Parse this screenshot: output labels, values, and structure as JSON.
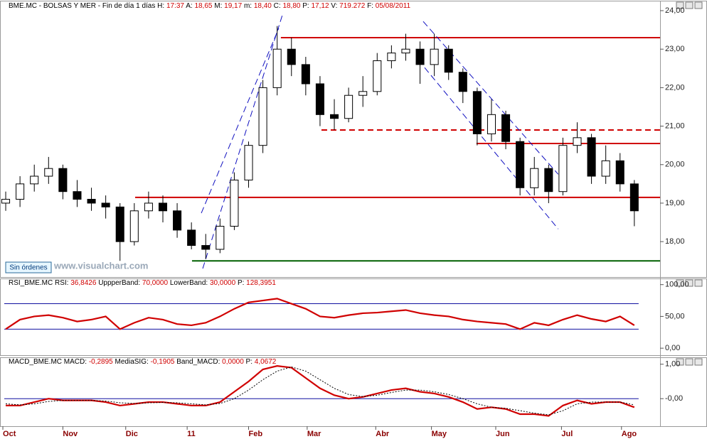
{
  "chart_data": [
    {
      "type": "candlestick",
      "title": "BME.MC - BOLSAS Y MER - Fin de día 1 días",
      "header": [
        [
          "H:",
          "17:37"
        ],
        [
          "A:",
          "18,65"
        ],
        [
          "M:",
          "19,17"
        ],
        [
          "m:",
          "18,40"
        ],
        [
          "C:",
          "18,80"
        ],
        [
          "P:",
          "17,12"
        ],
        [
          "V:",
          "719.272"
        ],
        [
          "F:",
          "05/08/2011"
        ]
      ],
      "badge": "Sin órdenes",
      "watermark": "www.visualchart.com",
      "xlim": [
        -0.4,
        45.8
      ],
      "ylim": [
        17.08,
        24.24
      ],
      "yticks": [
        {
          "value": 18,
          "label": "18,00"
        },
        {
          "value": 19,
          "label": "19,00"
        },
        {
          "value": 20,
          "label": "20,00"
        },
        {
          "value": 21,
          "label": "21,00"
        },
        {
          "value": 22,
          "label": "22,00"
        },
        {
          "value": 23,
          "label": "23,00"
        },
        {
          "value": 24,
          "label": "24,00"
        }
      ],
      "open": [
        19.0,
        19.1,
        19.5,
        19.7,
        19.9,
        19.3,
        19.1,
        19.0,
        18.9,
        18.0,
        18.8,
        19.0,
        18.8,
        18.3,
        17.9,
        17.8,
        18.4,
        19.6,
        20.5,
        22.0,
        23.0,
        22.6,
        22.1,
        21.3,
        21.2,
        21.8,
        21.9,
        22.7,
        22.9,
        23.0,
        22.6,
        23.0,
        22.4,
        21.9,
        20.8,
        21.3,
        20.6,
        19.4,
        19.9,
        19.3,
        20.5,
        20.7,
        19.7,
        20.1,
        19.5
      ],
      "high": [
        19.3,
        19.7,
        20.0,
        20.2,
        20.0,
        19.6,
        19.4,
        19.2,
        19.0,
        19.0,
        19.3,
        19.2,
        19.0,
        18.5,
        18.2,
        18.6,
        19.8,
        20.6,
        22.2,
        23.6,
        23.3,
        22.8,
        22.3,
        21.7,
        22.0,
        22.3,
        22.9,
        23.1,
        23.4,
        23.2,
        23.4,
        23.1,
        22.5,
        22.0,
        21.7,
        21.4,
        20.7,
        20.2,
        20.0,
        20.7,
        21.1,
        20.8,
        20.5,
        20.3,
        19.6
      ],
      "low": [
        18.8,
        18.9,
        19.3,
        19.5,
        19.1,
        18.9,
        18.8,
        18.6,
        17.5,
        17.9,
        18.6,
        18.5,
        18.1,
        17.8,
        17.55,
        17.7,
        18.3,
        19.4,
        20.3,
        21.8,
        22.3,
        21.8,
        21.0,
        20.9,
        21.1,
        21.5,
        21.8,
        22.5,
        22.7,
        22.1,
        22.3,
        22.2,
        21.6,
        20.5,
        20.6,
        20.4,
        19.2,
        19.2,
        19.0,
        19.2,
        20.3,
        19.5,
        19.5,
        19.3,
        18.4
      ],
      "close": [
        19.1,
        19.5,
        19.7,
        19.9,
        19.3,
        19.1,
        19.0,
        18.9,
        18.0,
        18.8,
        19.0,
        18.8,
        18.3,
        17.9,
        17.8,
        18.4,
        19.6,
        20.5,
        22.0,
        23.0,
        22.6,
        22.1,
        21.3,
        21.2,
        21.8,
        21.9,
        22.7,
        22.9,
        23.0,
        22.6,
        23.0,
        22.4,
        21.9,
        20.8,
        21.3,
        20.6,
        19.4,
        19.9,
        19.3,
        20.5,
        20.7,
        19.7,
        20.1,
        19.5,
        18.8
      ],
      "levels": [
        {
          "value": 23.3,
          "start": 19.26,
          "color": "#d00000",
          "dashed": false
        },
        {
          "value": 19.15,
          "start": 9.06,
          "color": "#d00000",
          "dashed": false
        },
        {
          "value": 20.55,
          "start": 32.95,
          "color": "#d00000",
          "dashed": false
        },
        {
          "value": 20.9,
          "start": 22.1,
          "color": "#d00000",
          "dashed": true
        },
        {
          "value": 17.5,
          "start": 13.04,
          "color": "#006000",
          "dashed": false
        }
      ],
      "trendlines": [
        {
          "x": [
            13.79,
            19.41
          ],
          "y": [
            17.3,
            23.94
          ]
        },
        {
          "x": [
            13.69,
            19.11
          ],
          "y": [
            18.74,
            23.54
          ]
        },
        {
          "x": [
            29.22,
            38.67
          ],
          "y": [
            23.72,
            19.75
          ]
        },
        {
          "x": [
            29.32,
            38.67
          ],
          "y": [
            22.52,
            18.33
          ]
        }
      ],
      "trend_color": "#1010c0"
    },
    {
      "type": "line",
      "title": "RSI_BME.MC",
      "header": [
        [
          "RSI:",
          "36,8426"
        ],
        [
          "UppperBand:",
          "70,0000"
        ],
        [
          "LowerBand:",
          "30,0000"
        ],
        [
          "P:",
          "128,3951"
        ]
      ],
      "xlim": [
        -0.4,
        45.8
      ],
      "ylim": [
        -11,
        108.6
      ],
      "yticks": [
        {
          "value": 0,
          "label": "0,00"
        },
        {
          "value": 50,
          "label": "50,00"
        },
        {
          "value": 100,
          "label": "100,00"
        }
      ],
      "bands": [
        70,
        30
      ],
      "band_color": "#1010a0",
      "series": [
        {
          "name": "RSI",
          "color": "#d00000",
          "dashed": false,
          "values": [
            30,
            45,
            50,
            52,
            48,
            42,
            45,
            50,
            30,
            40,
            48,
            45,
            38,
            36,
            40,
            50,
            62,
            72,
            75,
            78,
            70,
            62,
            50,
            48,
            52,
            55,
            56,
            58,
            60,
            55,
            52,
            50,
            45,
            42,
            40,
            38,
            30,
            40,
            36,
            45,
            52,
            46,
            42,
            50,
            36
          ]
        }
      ]
    },
    {
      "type": "line",
      "title": "MACD_BME.MC",
      "header": [
        [
          "MACD:",
          "-0,2895"
        ],
        [
          "MediaSIG:",
          "-0,1905"
        ],
        [
          "Band_MACD:",
          "0,0000"
        ],
        [
          "P:",
          "4,0672"
        ]
      ],
      "xlim": [
        -0.4,
        45.8
      ],
      "ylim": [
        -0.8,
        1.18
      ],
      "yticks": [
        {
          "value": 0,
          "label": "-0,00"
        },
        {
          "value": 1,
          "label": "1,00"
        }
      ],
      "bands": [
        0
      ],
      "band_color": "#1010a0",
      "xticks": [
        {
          "value": -0.2,
          "label": "Oct"
        },
        {
          "value": 4,
          "label": "Nov"
        },
        {
          "value": 8.4,
          "label": "Dic"
        },
        {
          "value": 12.7,
          "label": "11"
        },
        {
          "value": 17,
          "label": "Feb"
        },
        {
          "value": 21.1,
          "label": "Mar"
        },
        {
          "value": 25.9,
          "label": "Abr"
        },
        {
          "value": 29.8,
          "label": "May"
        },
        {
          "value": 34.3,
          "label": "Jun"
        },
        {
          "value": 38.9,
          "label": "Jul"
        },
        {
          "value": 43.1,
          "label": "Ago"
        }
      ],
      "series": [
        {
          "name": "MACD",
          "color": "#d00000",
          "dashed": false,
          "values": [
            -0.2,
            -0.2,
            -0.1,
            0,
            -0.05,
            -0.05,
            -0.05,
            -0.1,
            -0.2,
            -0.15,
            -0.1,
            -0.1,
            -0.15,
            -0.2,
            -0.2,
            -0.1,
            0.2,
            0.5,
            0.85,
            0.95,
            0.9,
            0.6,
            0.3,
            0.1,
            0,
            0.05,
            0.15,
            0.25,
            0.3,
            0.2,
            0.15,
            0.05,
            -0.1,
            -0.3,
            -0.25,
            -0.3,
            -0.45,
            -0.45,
            -0.5,
            -0.2,
            -0.05,
            -0.15,
            -0.1,
            -0.1,
            -0.25
          ]
        },
        {
          "name": "MediaSIG",
          "color": "#000000",
          "dashed": true,
          "values": [
            -0.15,
            -0.18,
            -0.15,
            -0.08,
            -0.05,
            -0.05,
            -0.05,
            -0.07,
            -0.12,
            -0.14,
            -0.12,
            -0.11,
            -0.12,
            -0.15,
            -0.18,
            -0.14,
            0.0,
            0.25,
            0.55,
            0.8,
            0.92,
            0.8,
            0.55,
            0.3,
            0.12,
            0.06,
            0.1,
            0.18,
            0.25,
            0.25,
            0.2,
            0.12,
            0.0,
            -0.15,
            -0.25,
            -0.28,
            -0.35,
            -0.42,
            -0.47,
            -0.35,
            -0.15,
            -0.1,
            -0.1,
            -0.1,
            -0.18
          ]
        }
      ]
    }
  ]
}
